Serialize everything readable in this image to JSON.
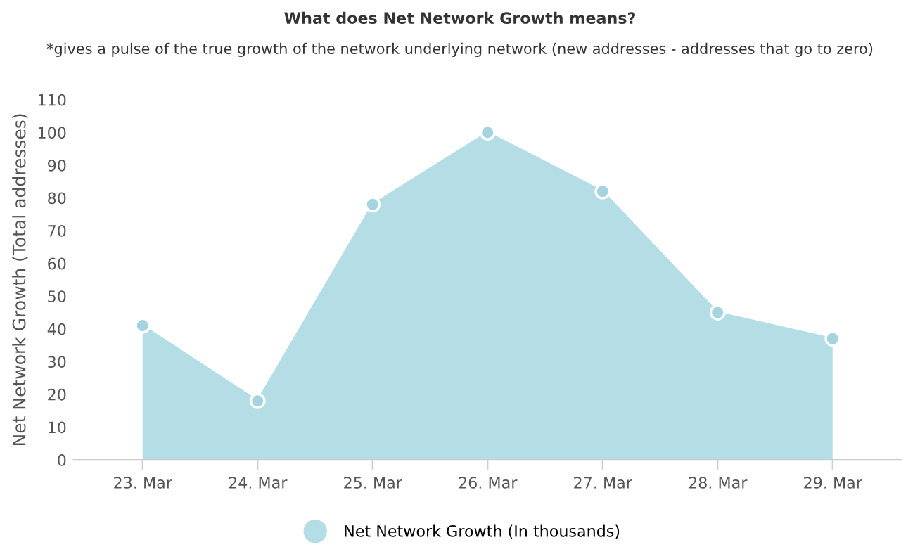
{
  "chart_data": {
    "type": "area",
    "title": "What does Net Network Growth means?",
    "subtitle": "*gives a pulse of the true growth of the network underlying network (new addresses - addresses that go to zero)",
    "ylabel": "Net Network Growth (Total addresses)",
    "categories": [
      "23. Mar",
      "24. Mar",
      "25. Mar",
      "26. Mar",
      "27. Mar",
      "28. Mar",
      "29. Mar"
    ],
    "series": [
      {
        "name": "Net Network Growth (In thousands)",
        "color": "#b5dde6",
        "values": [
          41,
          18,
          78,
          100,
          82,
          45,
          37
        ]
      }
    ],
    "ylim": [
      0,
      110
    ],
    "yticks": [
      0,
      10,
      20,
      30,
      40,
      50,
      60,
      70,
      80,
      90,
      100,
      110
    ],
    "grid": false,
    "legend": "bottom",
    "marker": "circle"
  }
}
